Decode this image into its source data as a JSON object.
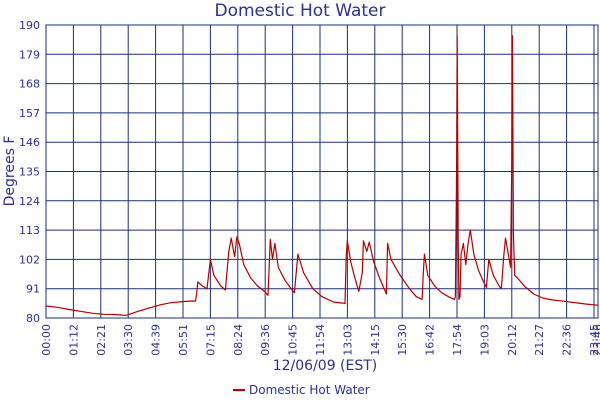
{
  "chart_data": {
    "type": "line",
    "title": "Domestic Hot Water",
    "xlabel": "12/06/09 (EST)",
    "ylabel": "Degrees F",
    "ylim": [
      80,
      190
    ],
    "yticks": [
      80,
      91,
      102,
      113,
      124,
      135,
      146,
      157,
      168,
      179,
      190
    ],
    "xlim_hours": [
      0,
      24
    ],
    "xtick_labels": [
      "00:00",
      "01:12",
      "02:21",
      "03:30",
      "04:39",
      "05:51",
      "07:15",
      "08:24",
      "09:36",
      "10:45",
      "11:54",
      "13:03",
      "14:15",
      "15:30",
      "16:42",
      "17:54",
      "19:03",
      "20:12",
      "21:27",
      "22:36",
      "23:45",
      "23:46"
    ],
    "grid": true,
    "legend_position": "bottom-center",
    "series": [
      {
        "name": "Domestic Hot Water",
        "color": "#b30000",
        "points": [
          [
            0.0,
            84.5
          ],
          [
            0.5,
            84.0
          ],
          [
            1.0,
            83.2
          ],
          [
            1.5,
            82.5
          ],
          [
            2.0,
            81.8
          ],
          [
            2.5,
            81.4
          ],
          [
            3.0,
            81.3
          ],
          [
            3.3,
            81.1
          ],
          [
            3.5,
            81.0
          ],
          [
            4.0,
            82.5
          ],
          [
            4.5,
            83.8
          ],
          [
            5.0,
            85.0
          ],
          [
            5.4,
            85.7
          ],
          [
            6.0,
            86.2
          ],
          [
            6.4,
            86.4
          ],
          [
            6.5,
            86.3
          ],
          [
            6.55,
            89.0
          ],
          [
            6.6,
            93.5
          ],
          [
            6.8,
            92.0
          ],
          [
            7.0,
            91.0
          ],
          [
            7.15,
            102.0
          ],
          [
            7.3,
            96.0
          ],
          [
            7.6,
            92.0
          ],
          [
            7.8,
            90.5
          ],
          [
            7.95,
            105.0
          ],
          [
            8.05,
            110.0
          ],
          [
            8.2,
            103.0
          ],
          [
            8.3,
            110.5
          ],
          [
            8.4,
            108.0
          ],
          [
            8.6,
            100.0
          ],
          [
            8.9,
            95.0
          ],
          [
            9.2,
            92.0
          ],
          [
            9.5,
            90.0
          ],
          [
            9.65,
            88.5
          ],
          [
            9.75,
            109.5
          ],
          [
            9.85,
            102.0
          ],
          [
            9.95,
            108.0
          ],
          [
            10.1,
            99.0
          ],
          [
            10.4,
            94.0
          ],
          [
            10.7,
            90.5
          ],
          [
            10.8,
            89.5
          ],
          [
            10.95,
            104.0
          ],
          [
            11.2,
            97.0
          ],
          [
            11.6,
            91.0
          ],
          [
            12.0,
            88.0
          ],
          [
            12.5,
            86.0
          ],
          [
            12.9,
            85.6
          ],
          [
            13.0,
            85.4
          ],
          [
            13.05,
            103.0
          ],
          [
            13.1,
            109.0
          ],
          [
            13.25,
            101.0
          ],
          [
            13.4,
            96.0
          ],
          [
            13.6,
            90.0
          ],
          [
            13.75,
            97.0
          ],
          [
            13.8,
            109.0
          ],
          [
            13.95,
            105.0
          ],
          [
            14.05,
            108.5
          ],
          [
            14.25,
            101.0
          ],
          [
            14.5,
            95.0
          ],
          [
            14.75,
            90.0
          ],
          [
            14.8,
            89.0
          ],
          [
            14.85,
            108.0
          ],
          [
            15.0,
            102.0
          ],
          [
            15.4,
            96.0
          ],
          [
            15.8,
            91.0
          ],
          [
            16.1,
            88.0
          ],
          [
            16.35,
            87.0
          ],
          [
            16.4,
            96.0
          ],
          [
            16.45,
            104.0
          ],
          [
            16.6,
            96.0
          ],
          [
            16.9,
            92.0
          ],
          [
            17.2,
            89.5
          ],
          [
            17.5,
            88.0
          ],
          [
            17.75,
            87.0
          ],
          [
            17.8,
            88.0
          ],
          [
            17.85,
            136.0
          ],
          [
            17.88,
            186.0
          ],
          [
            17.92,
            110.0
          ],
          [
            17.95,
            87.0
          ],
          [
            18.0,
            88.0
          ],
          [
            18.05,
            104.0
          ],
          [
            18.15,
            108.0
          ],
          [
            18.25,
            100.0
          ],
          [
            18.35,
            108.0
          ],
          [
            18.45,
            113.0
          ],
          [
            18.6,
            104.0
          ],
          [
            18.8,
            98.0
          ],
          [
            19.0,
            94.0
          ],
          [
            19.15,
            91.5
          ],
          [
            19.25,
            102.0
          ],
          [
            19.45,
            96.0
          ],
          [
            19.7,
            92.0
          ],
          [
            19.8,
            91.0
          ],
          [
            19.9,
            103.0
          ],
          [
            19.98,
            110.0
          ],
          [
            20.1,
            104.0
          ],
          [
            20.2,
            99.0
          ],
          [
            20.25,
            140.0
          ],
          [
            20.28,
            186.0
          ],
          [
            20.32,
            112.0
          ],
          [
            20.38,
            96.0
          ],
          [
            20.5,
            95.0
          ],
          [
            20.8,
            92.0
          ],
          [
            21.2,
            89.0
          ],
          [
            21.6,
            87.5
          ],
          [
            22.0,
            86.8
          ],
          [
            22.5,
            86.3
          ],
          [
            23.0,
            85.8
          ],
          [
            23.5,
            85.2
          ],
          [
            24.0,
            84.8
          ]
        ]
      }
    ]
  }
}
